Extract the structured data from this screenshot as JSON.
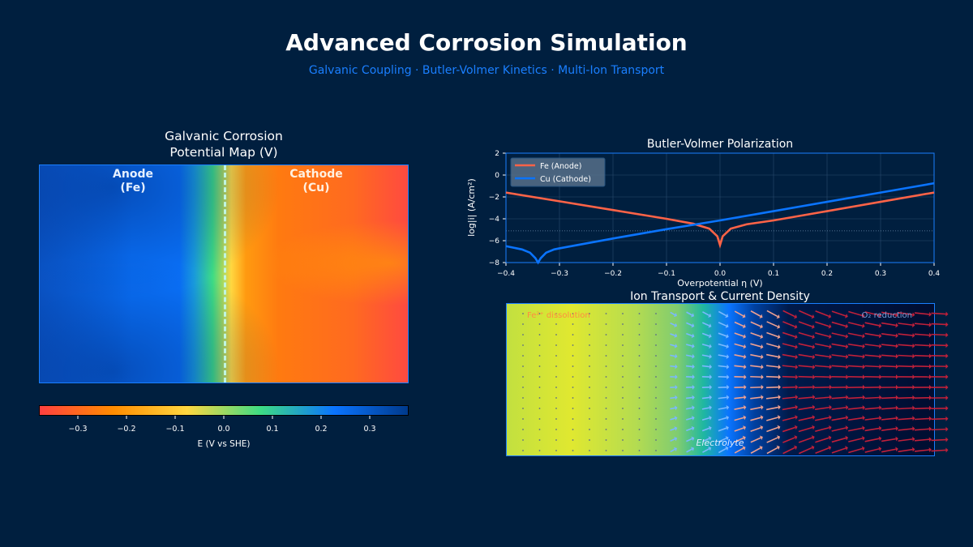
{
  "header": {
    "title": "Advanced Corrosion Simulation",
    "subtitle": "Galvanic Coupling  ·  Butler-Volmer Kinetics  ·  Multi-Ion Transport"
  },
  "colors": {
    "background": "#001f3f",
    "fe": "#ff6347",
    "cu": "#0a74ff",
    "accent": "#1a7fff"
  },
  "chart_data": [
    {
      "type": "heatmap",
      "title": "Galvanic Corrosion\nPotential Map (V)",
      "title_lines": [
        "Galvanic Corrosion",
        "Potential Map (V)"
      ],
      "annotations": [
        {
          "text": "Anode\n(Fe)",
          "lines": [
            "Anode",
            "(Fe)"
          ]
        },
        {
          "text": "Cathode\n(Cu)",
          "lines": [
            "Cathode",
            "(Cu)"
          ]
        }
      ],
      "colorbar": {
        "label": "E (V vs SHE)",
        "range": [
          -0.38,
          0.38
        ],
        "ticks": [
          "−0.3",
          "−0.2",
          "−0.1",
          "0.0",
          "0.1",
          "0.2",
          "0.3"
        ],
        "tick_values": [
          -0.3,
          -0.2,
          -0.1,
          0,
          0.1,
          0.2,
          0.3
        ],
        "colormap": [
          "#ff4040",
          "#ff8c00",
          "#ffd740",
          "#3ddc84",
          "#0a74ff",
          "#003a8c"
        ]
      }
    },
    {
      "type": "line",
      "title": "Butler-Volmer Polarization",
      "xlabel": "Overpotential η (V)",
      "ylabel": "log|i| (A/cm²)",
      "xlim": [
        -0.4,
        0.4
      ],
      "ylim": [
        -8,
        2
      ],
      "grid": true,
      "legend": "top-left",
      "xticks": [
        "−0.4",
        "−0.3",
        "−0.2",
        "−0.1",
        "0.0",
        "0.1",
        "0.2",
        "0.3",
        "0.4"
      ],
      "xtick_values": [
        -0.4,
        -0.3,
        -0.2,
        -0.1,
        0,
        0.1,
        0.2,
        0.3,
        0.4
      ],
      "yticks": [
        "2",
        "0",
        "−2",
        "−4",
        "−6",
        "−8"
      ],
      "ytick_values": [
        2,
        0,
        -2,
        -4,
        -6,
        -8
      ],
      "reference_line": -5.1,
      "series": [
        {
          "name": "Fe (Anode)",
          "color": "#ff6347",
          "x": [
            -0.4,
            -0.3,
            -0.2,
            -0.1,
            -0.05,
            -0.02,
            -0.005,
            0,
            0.005,
            0.02,
            0.05,
            0.1,
            0.2,
            0.3,
            0.4
          ],
          "y": [
            -1.6,
            -2.4,
            -3.2,
            -4.0,
            -4.45,
            -4.9,
            -5.6,
            -6.4,
            -5.6,
            -4.9,
            -4.5,
            -4.15,
            -3.3,
            -2.45,
            -1.6
          ]
        },
        {
          "name": "Cu (Cathode)",
          "color": "#0a74ff",
          "x": [
            -0.4,
            -0.37,
            -0.355,
            -0.345,
            -0.34,
            -0.335,
            -0.325,
            -0.31,
            -0.3,
            -0.2,
            -0.1,
            0,
            0.1,
            0.2,
            0.3,
            0.4
          ],
          "y": [
            -6.5,
            -6.8,
            -7.1,
            -7.6,
            -8,
            -7.6,
            -7.1,
            -6.8,
            -6.7,
            -5.8,
            -4.95,
            -4.15,
            -3.3,
            -2.45,
            -1.6,
            -0.75
          ]
        }
      ]
    },
    {
      "type": "quiver",
      "title": "Ion Transport & Current Density",
      "annotations": [
        "Fe²⁺ dissolution",
        "O₂ reduction",
        "Electrolyte"
      ]
    }
  ]
}
